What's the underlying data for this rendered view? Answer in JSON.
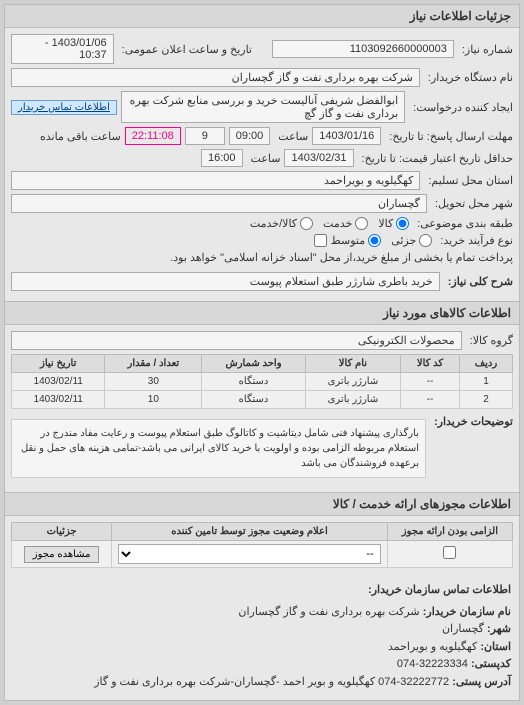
{
  "header": {
    "title": "جزئیات اطلاعات نیاز"
  },
  "info": {
    "req_no_label": "شماره نیاز:",
    "req_no": "1103092660000003",
    "pub_date_label": "تاریخ و ساعت اعلان عمومی:",
    "pub_date": "1403/01/06 - 10:37",
    "org_label": "نام دستگاه خریدار:",
    "org": "شرکت بهره برداری نفت و گاز گچساران",
    "creator_label": "ایجاد کننده درخواست:",
    "creator": "ابوالفضل شریفی آنالیست خرید و بررسی منابع شرکت بهره برداری نفت و گاز گچ",
    "contact_btn": "اطلاعات تماس خریدار",
    "deadline_label": "مهلت ارسال پاسخ: تا تاریخ:",
    "deadline_date": "1403/01/16",
    "time_label": "ساعت",
    "deadline_time": "09:00",
    "days": "9",
    "remaining_label": "ساعت باقی مانده",
    "countdown": "22:11:08",
    "min_date_label": "حداقل تاریخ اعتبار قیمت: تا تاریخ:",
    "min_date": "1403/02/31",
    "min_time": "16:00",
    "province_label": "استان محل تسلیم:",
    "province": "کهگیلویه و بویراحمد",
    "city_label": "شهر محل تحویل:",
    "city": "گچساران",
    "pkg_label": "طبقه بندی موضوعی:",
    "pkg_goods": "کالا",
    "pkg_service": "خدمت",
    "pkg_mixed": "کالا/خدمت",
    "radio_buy": "جزئی",
    "radio_mid": "متوسط",
    "buy_type_label": "نوع فرآیند خرید:",
    "buy_note": "پرداخت تمام یا بخشی از مبلغ خرید،از محل \"اسناد خزانه اسلامی\" خواهد بود.",
    "checkbox_label": ""
  },
  "desc": {
    "label": "شرح کلی نیاز:",
    "value": "خرید باطری شارژر طبق استعلام پیوست"
  },
  "goods": {
    "title": "اطلاعات کالاهای مورد نیاز",
    "group_label": "گروه کالا:",
    "group": "محصولات الکترونیکی",
    "cols": [
      "ردیف",
      "کد کالا",
      "نام کالا",
      "واحد شمارش",
      "تعداد / مقدار",
      "تاریخ نیاز"
    ],
    "rows": [
      [
        "1",
        "--",
        "شارژر باتری",
        "دستگاه",
        "30",
        "1403/02/11"
      ],
      [
        "2",
        "--",
        "شارژر باتری",
        "دستگاه",
        "10",
        "1403/02/11"
      ]
    ],
    "watermark": "ســامـانـه تـدارکات الـکـتـرونـیـکی دولـت",
    "notes_label": "توضیحات خریدار:",
    "notes": "بارگذاری پیشنهاد فنی شامل دیتاشیت و کاتالوگ طبق استعلام پیوست و رعایت مفاد مندرج در استعلام مربوطه الزامی بوده و اولویت با خرید کالای ایرانی می باشد-تمامی هزینه های حمل و نقل برعهده فروشندگان می باشد"
  },
  "permit": {
    "title": "اطلاعات مجوزهای ارائه خدمت / کالا",
    "cols": [
      "الزامی بودن ارائه مجوز",
      "اعلام وضعیت مجوز توسط تامین کننده",
      "جزئیات"
    ],
    "mandatory_empty": "",
    "select_placeholder": "--",
    "view_btn": "مشاهده مجوز"
  },
  "contact": {
    "title": "اطلاعات تماس سازمان خریدار:",
    "org_label": "نام سازمان خریدار:",
    "org": "شرکت بهره برداری نفت و گاز گچساران",
    "city_label": "شهر:",
    "city": "گچساران",
    "province_label": "استان:",
    "province": "کهگیلویه و بویراحمد",
    "postal_label": "کدپستی:",
    "postal": "32223334-074",
    "addr_label": "آدرس پستی:",
    "addr": "32222772-074 کهگیلویه و بویر احمد -گچساران-شرکت بهره برداری نفت و گاز"
  }
}
